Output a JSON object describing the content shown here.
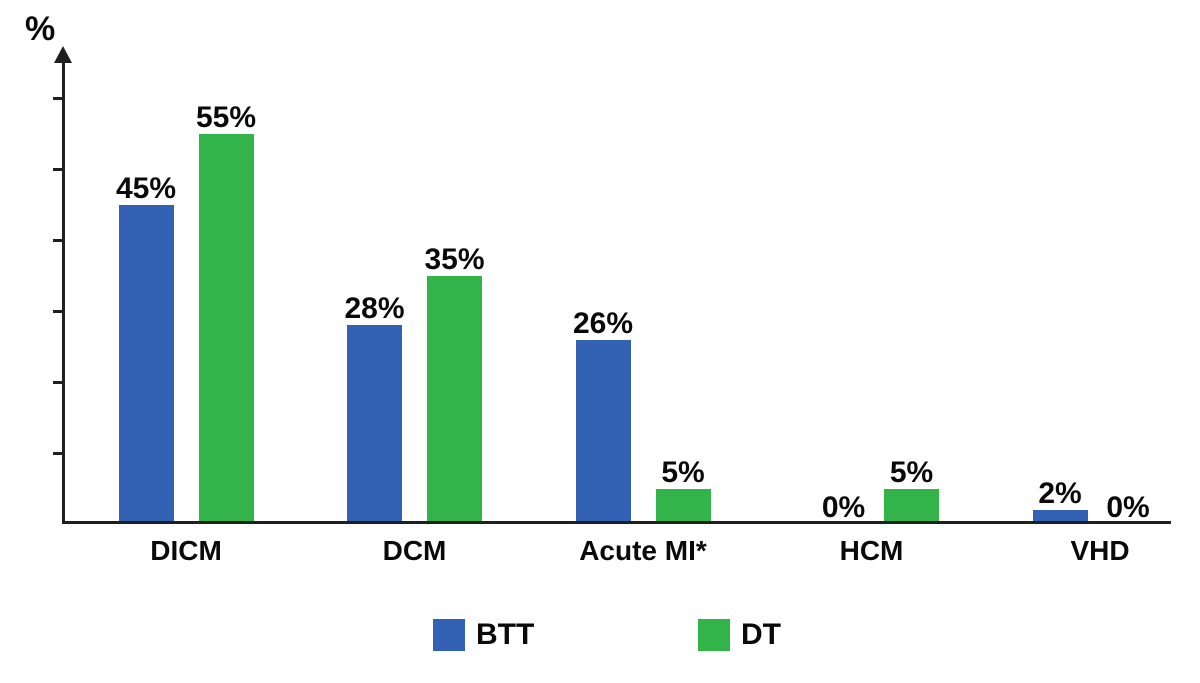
{
  "chart_data": {
    "type": "bar",
    "title": "",
    "ylabel": "%",
    "xlabel": "",
    "categories": [
      "DICM",
      "DCM",
      "Acute MI*",
      "HCM",
      "VHD"
    ],
    "series": [
      {
        "name": "BTT",
        "color": "#3361B4",
        "values": [
          45,
          28,
          26,
          0,
          2
        ],
        "labels": [
          "45%",
          "28%",
          "26%",
          "0%",
          "2%"
        ]
      },
      {
        "name": "DT",
        "color": "#33B44A",
        "values": [
          55,
          35,
          5,
          5,
          0
        ],
        "labels": [
          "55%",
          "35%",
          "5%",
          "5%",
          "0%"
        ]
      }
    ],
    "ylim": [
      0,
      66
    ],
    "y_tick_step": 10,
    "y_tick_max": 60,
    "y_ticks_labeled": false,
    "grid": false,
    "legend_position": "bottom",
    "axis_color": "#1f1f1f"
  }
}
